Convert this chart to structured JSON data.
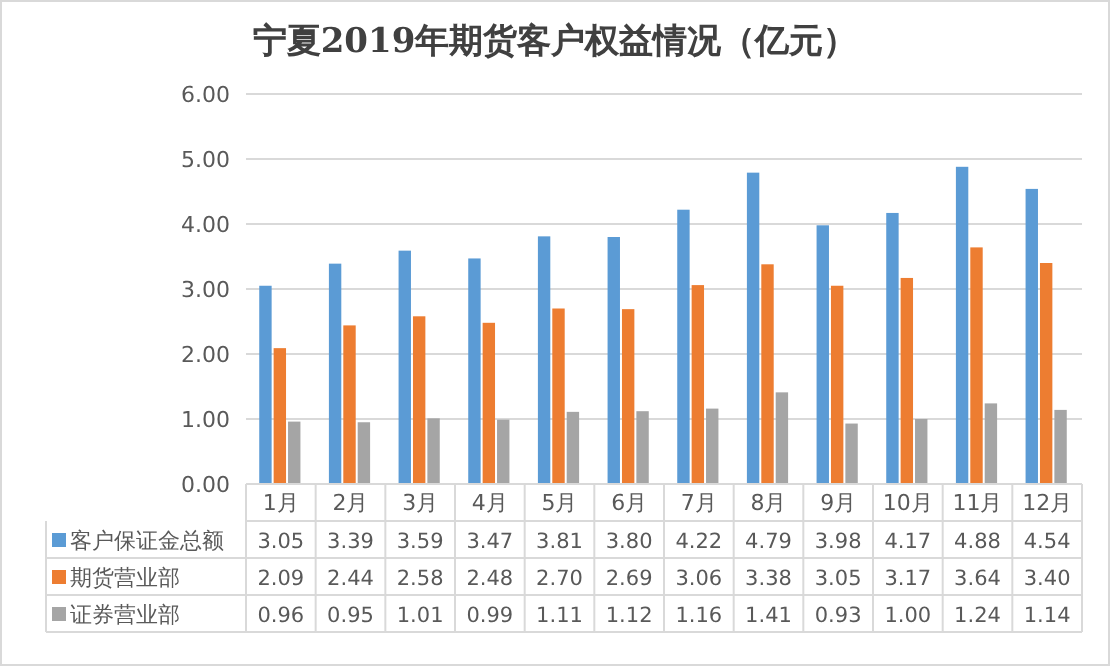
{
  "chart_data": {
    "type": "bar",
    "title": "宁夏2019年期货客户权益情况（亿元）",
    "categories": [
      "1月",
      "2月",
      "3月",
      "4月",
      "5月",
      "6月",
      "7月",
      "8月",
      "9月",
      "10月",
      "11月",
      "12月"
    ],
    "series": [
      {
        "name": "客户保证金总额",
        "color": "#5b9bd5",
        "values": [
          3.05,
          3.39,
          3.59,
          3.47,
          3.81,
          3.8,
          4.22,
          4.79,
          3.98,
          4.17,
          4.88,
          4.54
        ],
        "value_labels": [
          "3.05",
          "3.39",
          "3.59",
          "3.47",
          "3.81",
          "3.80",
          "4.22",
          "4.79",
          "3.98",
          "4.17",
          "4.88",
          "4.54"
        ]
      },
      {
        "name": "期货营业部",
        "color": "#ed7d31",
        "values": [
          2.09,
          2.44,
          2.58,
          2.48,
          2.7,
          2.69,
          3.06,
          3.38,
          3.05,
          3.17,
          3.64,
          3.4
        ],
        "value_labels": [
          "2.09",
          "2.44",
          "2.58",
          "2.48",
          "2.70",
          "2.69",
          "3.06",
          "3.38",
          "3.05",
          "3.17",
          "3.64",
          "3.40"
        ]
      },
      {
        "name": "证券营业部",
        "color": "#a5a5a5",
        "values": [
          0.96,
          0.95,
          1.01,
          0.99,
          1.11,
          1.12,
          1.16,
          1.41,
          0.93,
          1.0,
          1.24,
          1.14
        ],
        "value_labels": [
          "0.96",
          "0.95",
          "1.01",
          "0.99",
          "1.11",
          "1.12",
          "1.16",
          "1.41",
          "0.93",
          "1.00",
          "1.24",
          "1.14"
        ]
      }
    ],
    "ylim": [
      0,
      6
    ],
    "yticks": [
      {
        "value": 0,
        "label": "0.00"
      },
      {
        "value": 1,
        "label": "1.00"
      },
      {
        "value": 2,
        "label": "2.00"
      },
      {
        "value": 3,
        "label": "3.00"
      },
      {
        "value": 4,
        "label": "4.00"
      },
      {
        "value": 5,
        "label": "5.00"
      },
      {
        "value": 6,
        "label": "6.00"
      }
    ],
    "grid": "y",
    "legend": "bottom"
  }
}
